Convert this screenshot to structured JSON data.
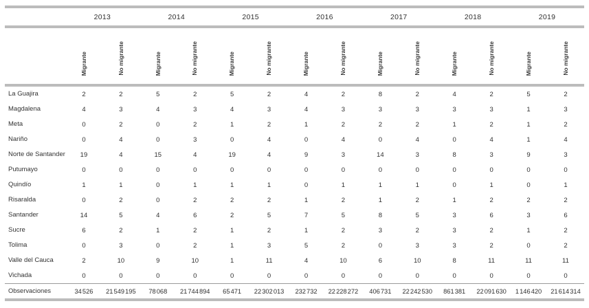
{
  "table": {
    "years": [
      "2013",
      "2014",
      "2015",
      "2016",
      "2017",
      "2018",
      "2019"
    ],
    "column_subheaders": [
      "Migrante",
      "No migrante"
    ],
    "rows": [
      {
        "label": "La Guajira",
        "values": [
          2,
          2,
          5,
          2,
          5,
          2,
          4,
          2,
          8,
          2,
          4,
          2,
          5,
          2
        ]
      },
      {
        "label": "Magdalena",
        "values": [
          4,
          3,
          4,
          3,
          4,
          3,
          4,
          3,
          3,
          3,
          3,
          3,
          1,
          3
        ]
      },
      {
        "label": "Meta",
        "values": [
          0,
          2,
          0,
          2,
          1,
          2,
          1,
          2,
          2,
          2,
          1,
          2,
          1,
          2
        ]
      },
      {
        "label": "Nariño",
        "values": [
          0,
          4,
          0,
          3,
          0,
          4,
          0,
          4,
          0,
          4,
          0,
          4,
          1,
          4
        ]
      },
      {
        "label": "Norte de Santander",
        "values": [
          19,
          4,
          15,
          4,
          19,
          4,
          9,
          3,
          14,
          3,
          8,
          3,
          9,
          3
        ]
      },
      {
        "label": "Putumayo",
        "values": [
          0,
          0,
          0,
          0,
          0,
          0,
          0,
          0,
          0,
          0,
          0,
          0,
          0,
          0
        ]
      },
      {
        "label": "Quindío",
        "values": [
          1,
          1,
          0,
          1,
          1,
          1,
          0,
          1,
          1,
          1,
          0,
          1,
          0,
          1
        ]
      },
      {
        "label": "Risaralda",
        "values": [
          0,
          2,
          0,
          2,
          2,
          2,
          1,
          2,
          1,
          2,
          1,
          2,
          2,
          2
        ]
      },
      {
        "label": "Santander",
        "values": [
          14,
          5,
          4,
          6,
          2,
          5,
          7,
          5,
          8,
          5,
          3,
          6,
          3,
          6
        ]
      },
      {
        "label": "Sucre",
        "values": [
          6,
          2,
          1,
          2,
          1,
          2,
          1,
          2,
          3,
          2,
          3,
          2,
          1,
          2
        ]
      },
      {
        "label": "Tolima",
        "values": [
          0,
          3,
          0,
          2,
          1,
          3,
          5,
          2,
          0,
          3,
          3,
          2,
          0,
          2
        ]
      },
      {
        "label": "Valle del Cauca",
        "values": [
          2,
          10,
          9,
          10,
          1,
          11,
          4,
          10,
          6,
          10,
          8,
          11,
          11,
          11
        ]
      },
      {
        "label": "Vichada",
        "values": [
          0,
          0,
          0,
          0,
          0,
          0,
          0,
          0,
          0,
          0,
          0,
          0,
          0,
          0
        ]
      }
    ],
    "footer_row": {
      "label": "Observaciones",
      "values": [
        "34 526",
        "21 549 195",
        "78 068",
        "21 744 894",
        "65 471",
        "22 302 013",
        "232 732",
        "22 228 272",
        "406 731",
        "22 242 530",
        "861 381",
        "22 091 630",
        "1 146 420",
        "21 614 314"
      ]
    }
  },
  "colors": {
    "thick_rule": "#bcbcbc",
    "thin_rule": "#9a9a9a",
    "text": "#333333"
  }
}
